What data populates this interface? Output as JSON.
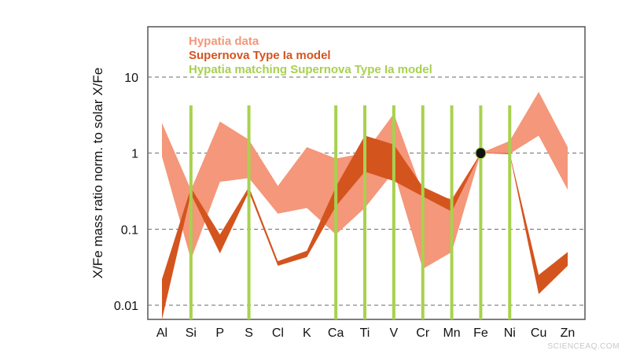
{
  "chart_data": {
    "type": "area",
    "title": "",
    "xlabel": "",
    "ylabel": "X/Fe mass ratio norm. to solar X/Fe",
    "y_scale": "log",
    "ylim": [
      0.006,
      50
    ],
    "y_ticks": [
      0.01,
      0.1,
      1,
      10
    ],
    "y_tick_labels": [
      "0.01",
      "0.1",
      "1",
      "10"
    ],
    "grid": "horizontal dashed",
    "categories": [
      "Al",
      "Si",
      "P",
      "S",
      "Cl",
      "K",
      "Ca",
      "Ti",
      "V",
      "Cr",
      "Mn",
      "Fe",
      "Ni",
      "Cu",
      "Zn"
    ],
    "legend": [
      {
        "label": "Hypatia data",
        "color": "#f4977a"
      },
      {
        "label": "Supernova Type Ia model",
        "color": "#d4541e"
      },
      {
        "label": "Hypatia matching Supernova Type Ia model",
        "color": "#a8d14f"
      }
    ],
    "series": [
      {
        "name": "Hypatia data",
        "color": "#f4977a",
        "upper": [
          2.5,
          0.33,
          2.6,
          1.5,
          0.37,
          1.2,
          0.85,
          1.0,
          3.3,
          0.3,
          0.25,
          1.0,
          1.45,
          6.4,
          1.2
        ],
        "lower": [
          0.9,
          0.04,
          0.42,
          0.47,
          0.16,
          0.19,
          0.085,
          0.19,
          0.57,
          0.03,
          0.05,
          1.0,
          0.98,
          1.7,
          0.33
        ]
      },
      {
        "name": "Supernova Type Ia model",
        "color": "#d4541e",
        "upper": [
          0.022,
          0.35,
          0.085,
          0.36,
          0.038,
          0.052,
          0.36,
          1.7,
          1.3,
          0.36,
          0.24,
          1.0,
          1.0,
          0.025,
          0.05
        ],
        "lower": [
          0.006,
          0.29,
          0.048,
          0.31,
          0.033,
          0.043,
          0.2,
          0.57,
          0.43,
          0.27,
          0.17,
          1.0,
          0.97,
          0.014,
          0.033
        ]
      }
    ],
    "highlighted_elements": [
      "Si",
      "S",
      "Ca",
      "Ti",
      "V",
      "Cr",
      "Mn",
      "Fe",
      "Ni"
    ],
    "reference_point": {
      "element": "Fe",
      "value": 1
    }
  },
  "watermark": "SCIENCEAQ.COM"
}
